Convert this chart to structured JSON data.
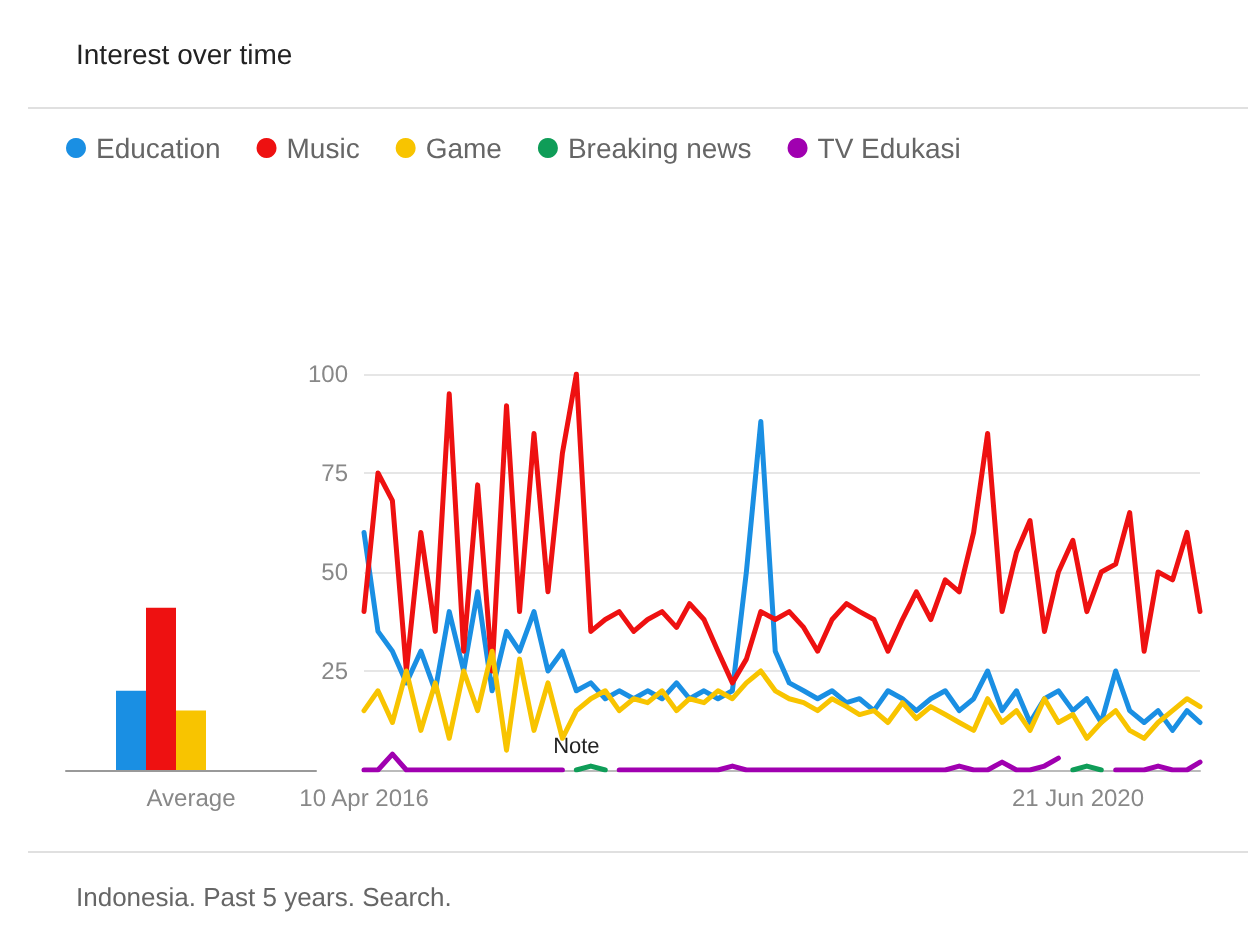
{
  "chart_data": [
    {
      "type": "bar",
      "title": "Interest over time",
      "categories": [
        "Average"
      ],
      "ylim": [
        0,
        100
      ],
      "tick_labels": "x",
      "legend": false,
      "grid": false,
      "series": [
        {
          "color": "#1a8fe3",
          "values": [
            20
          ]
        },
        {
          "color": "#ee1111",
          "values": [
            41
          ]
        },
        {
          "color": "#f8c400",
          "values": [
            15
          ]
        },
        {
          "color": "#0f9d58",
          "values": [
            0
          ]
        },
        {
          "color": "#a000b0",
          "values": [
            0
          ]
        }
      ]
    },
    {
      "type": "line",
      "legend": "top left",
      "grid": "y",
      "marker": "none",
      "line_style": "solid",
      "x": [
        "2016-04-10",
        "2016-05-10",
        "2016-06-10",
        "2016-07-10",
        "2016-08-10",
        "2016-09-10",
        "2016-10-10",
        "2016-11-10",
        "2016-12-10",
        "2017-01-10",
        "2017-02-10",
        "2017-03-10",
        "2017-04-10",
        "2017-05-10",
        "2017-06-10",
        "2017-07-10",
        "2017-08-10",
        "2017-09-10",
        "2017-10-10",
        "2017-11-10",
        "2017-12-10",
        "2018-01-10",
        "2018-02-10",
        "2018-03-10",
        "2018-04-10",
        "2018-05-10",
        "2018-06-10",
        "2018-07-10",
        "2018-08-10",
        "2018-09-10",
        "2018-10-10",
        "2018-11-10",
        "2018-12-10",
        "2019-01-10",
        "2019-02-10",
        "2019-03-10",
        "2019-04-10",
        "2019-05-10",
        "2019-06-10",
        "2019-07-10",
        "2019-08-10",
        "2019-09-10",
        "2019-10-10",
        "2019-11-10",
        "2019-12-10",
        "2020-01-10",
        "2020-02-10",
        "2020-03-10",
        "2020-04-10",
        "2020-05-10",
        "2020-06-10",
        "2020-07-10",
        "2020-08-10",
        "2020-09-10",
        "2020-10-10",
        "2020-11-10",
        "2020-12-10",
        "2021-01-10",
        "2021-02-10",
        "2021-03-10"
      ],
      "xlim": [
        "2016-04-10",
        "2021-03-10"
      ],
      "xticks": [
        {
          "value": "2016-04-10",
          "label": "10 Apr 2016"
        },
        {
          "value": "2020-06-21",
          "label": "21 Jun 2020"
        }
      ],
      "ylim": [
        0,
        100
      ],
      "yticks": [
        25,
        50,
        75,
        100
      ],
      "series": [
        {
          "name": "Education",
          "color": "#1a8fe3",
          "values": [
            60,
            35,
            30,
            22,
            30,
            20,
            40,
            25,
            45,
            20,
            35,
            30,
            40,
            25,
            30,
            20,
            22,
            18,
            20,
            18,
            20,
            18,
            22,
            18,
            20,
            18,
            20,
            50,
            88,
            30,
            22,
            20,
            18,
            20,
            17,
            18,
            15,
            20,
            18,
            15,
            18,
            20,
            15,
            18,
            25,
            15,
            20,
            12,
            18,
            20,
            15,
            18,
            12,
            25,
            15,
            12,
            15,
            10,
            15,
            12
          ]
        },
        {
          "name": "Music",
          "color": "#ee1111",
          "values": [
            40,
            75,
            68,
            25,
            60,
            35,
            95,
            30,
            72,
            25,
            92,
            40,
            85,
            45,
            80,
            100,
            35,
            38,
            40,
            35,
            38,
            40,
            36,
            42,
            38,
            30,
            22,
            28,
            40,
            38,
            40,
            36,
            30,
            38,
            42,
            40,
            38,
            30,
            38,
            45,
            38,
            48,
            45,
            60,
            85,
            40,
            55,
            63,
            35,
            50,
            58,
            40,
            50,
            52,
            65,
            30,
            50,
            48,
            60,
            40
          ]
        },
        {
          "name": "Game",
          "color": "#f8c400",
          "values": [
            15,
            20,
            12,
            25,
            10,
            22,
            8,
            25,
            15,
            30,
            5,
            28,
            10,
            22,
            8,
            15,
            18,
            20,
            15,
            18,
            17,
            20,
            15,
            18,
            17,
            20,
            18,
            22,
            25,
            20,
            18,
            17,
            15,
            18,
            16,
            14,
            15,
            12,
            17,
            13,
            16,
            14,
            12,
            10,
            18,
            12,
            15,
            10,
            18,
            12,
            14,
            8,
            12,
            15,
            10,
            8,
            12,
            15,
            18,
            16
          ]
        },
        {
          "name": "Breaking news",
          "color": "#0f9d58",
          "values": [
            null,
            null,
            null,
            null,
            null,
            null,
            null,
            null,
            null,
            null,
            null,
            null,
            null,
            null,
            null,
            0,
            1,
            0,
            null,
            null,
            null,
            null,
            null,
            null,
            null,
            null,
            null,
            null,
            null,
            null,
            null,
            null,
            null,
            null,
            null,
            null,
            null,
            null,
            null,
            null,
            null,
            null,
            null,
            null,
            null,
            null,
            null,
            null,
            null,
            null,
            0,
            1,
            0,
            null,
            null,
            null,
            null,
            null,
            null,
            null
          ]
        },
        {
          "name": "TV Edukasi",
          "color": "#a000b0",
          "values": [
            0,
            0,
            4,
            0,
            0,
            0,
            0,
            0,
            0,
            0,
            0,
            0,
            0,
            0,
            0,
            null,
            null,
            null,
            0,
            0,
            0,
            0,
            0,
            0,
            0,
            0,
            1,
            0,
            0,
            0,
            0,
            0,
            0,
            0,
            0,
            0,
            0,
            0,
            0,
            0,
            0,
            0,
            1,
            0,
            0,
            2,
            0,
            0,
            1,
            3,
            null,
            null,
            null,
            0,
            0,
            0,
            1,
            0,
            0,
            2
          ]
        }
      ],
      "annotations": [
        {
          "text": "Note",
          "x": "2017-07-10",
          "y": 3
        },
        "Indonesia. Past 5 years. Search."
      ]
    }
  ]
}
